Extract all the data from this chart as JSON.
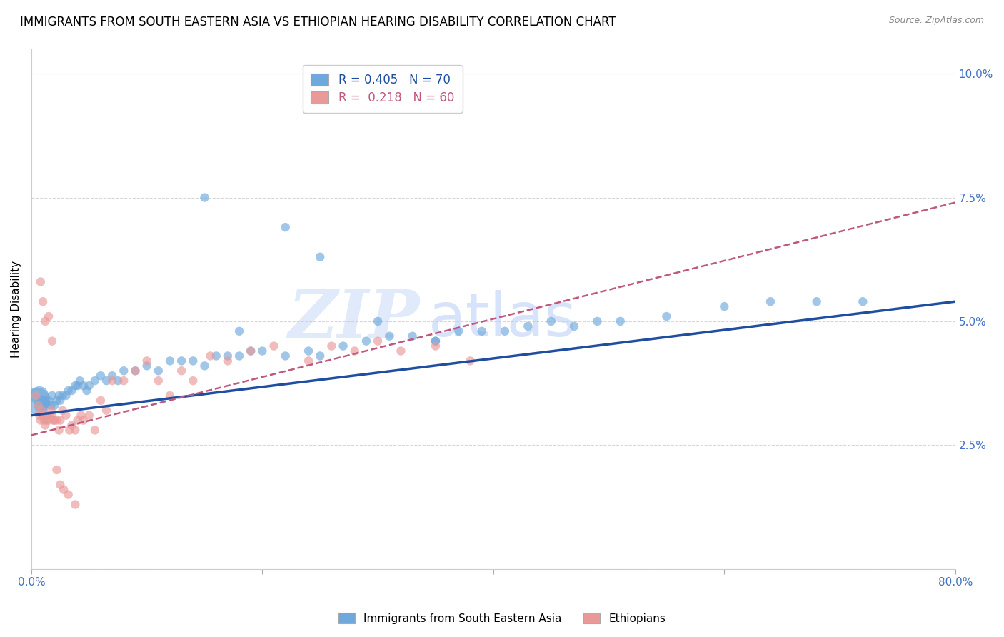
{
  "title": "IMMIGRANTS FROM SOUTH EASTERN ASIA VS ETHIOPIAN HEARING DISABILITY CORRELATION CHART",
  "source": "Source: ZipAtlas.com",
  "ylabel": "Hearing Disability",
  "yticks": [
    0.0,
    0.025,
    0.05,
    0.075,
    0.1
  ],
  "ytick_labels": [
    "",
    "2.5%",
    "5.0%",
    "7.5%",
    "10.0%"
  ],
  "xlim": [
    0.0,
    0.8
  ],
  "ylim": [
    0.0,
    0.105
  ],
  "legend_blue_R": "R = 0.405",
  "legend_blue_N": "N = 70",
  "legend_pink_R": "R =  0.218",
  "legend_pink_N": "N = 60",
  "legend_label_blue": "Immigrants from South Eastern Asia",
  "legend_label_pink": "Ethiopians",
  "blue_color": "#6fa8dc",
  "pink_color": "#ea9999",
  "blue_line_color": "#1f4ea1",
  "pink_line_color": "#c0587e",
  "watermark_color": "#c9daf8",
  "blue_scatter_x": [
    0.005,
    0.007,
    0.008,
    0.009,
    0.01,
    0.011,
    0.012,
    0.013,
    0.015,
    0.017,
    0.018,
    0.02,
    0.022,
    0.024,
    0.025,
    0.027,
    0.03,
    0.032,
    0.035,
    0.038,
    0.04,
    0.042,
    0.045,
    0.048,
    0.05,
    0.055,
    0.06,
    0.065,
    0.07,
    0.075,
    0.08,
    0.09,
    0.1,
    0.11,
    0.12,
    0.13,
    0.14,
    0.15,
    0.16,
    0.17,
    0.18,
    0.19,
    0.2,
    0.22,
    0.24,
    0.25,
    0.27,
    0.29,
    0.31,
    0.33,
    0.35,
    0.37,
    0.39,
    0.41,
    0.43,
    0.45,
    0.47,
    0.49,
    0.51,
    0.55,
    0.6,
    0.64,
    0.68,
    0.72,
    0.15,
    0.22,
    0.25,
    0.18,
    0.3,
    0.35
  ],
  "blue_scatter_y": [
    0.034,
    0.035,
    0.033,
    0.034,
    0.032,
    0.033,
    0.034,
    0.033,
    0.034,
    0.033,
    0.035,
    0.033,
    0.034,
    0.035,
    0.034,
    0.035,
    0.035,
    0.036,
    0.036,
    0.037,
    0.037,
    0.038,
    0.037,
    0.036,
    0.037,
    0.038,
    0.039,
    0.038,
    0.039,
    0.038,
    0.04,
    0.04,
    0.041,
    0.04,
    0.042,
    0.042,
    0.042,
    0.041,
    0.043,
    0.043,
    0.043,
    0.044,
    0.044,
    0.043,
    0.044,
    0.043,
    0.045,
    0.046,
    0.047,
    0.047,
    0.046,
    0.048,
    0.048,
    0.048,
    0.049,
    0.05,
    0.049,
    0.05,
    0.05,
    0.051,
    0.053,
    0.054,
    0.054,
    0.054,
    0.075,
    0.069,
    0.063,
    0.048,
    0.05,
    0.046
  ],
  "blue_scatter_size": [
    700,
    350,
    180,
    120,
    80,
    80,
    80,
    80,
    80,
    80,
    80,
    80,
    80,
    80,
    80,
    80,
    80,
    80,
    80,
    80,
    80,
    80,
    80,
    80,
    80,
    80,
    80,
    80,
    80,
    80,
    80,
    80,
    80,
    80,
    80,
    80,
    80,
    80,
    80,
    80,
    80,
    80,
    80,
    80,
    80,
    80,
    80,
    80,
    80,
    80,
    80,
    80,
    80,
    80,
    80,
    80,
    80,
    80,
    80,
    80,
    80,
    80,
    80,
    80,
    80,
    80,
    80,
    80,
    80,
    80
  ],
  "pink_scatter_x": [
    0.004,
    0.006,
    0.007,
    0.008,
    0.009,
    0.01,
    0.011,
    0.012,
    0.013,
    0.014,
    0.015,
    0.016,
    0.017,
    0.018,
    0.019,
    0.02,
    0.022,
    0.024,
    0.025,
    0.027,
    0.03,
    0.033,
    0.035,
    0.038,
    0.04,
    0.043,
    0.045,
    0.05,
    0.055,
    0.06,
    0.065,
    0.07,
    0.08,
    0.09,
    0.1,
    0.11,
    0.12,
    0.13,
    0.14,
    0.155,
    0.17,
    0.19,
    0.21,
    0.24,
    0.26,
    0.28,
    0.3,
    0.32,
    0.35,
    0.38,
    0.008,
    0.01,
    0.012,
    0.015,
    0.018,
    0.022,
    0.025,
    0.028,
    0.032,
    0.038
  ],
  "pink_scatter_y": [
    0.035,
    0.033,
    0.031,
    0.03,
    0.032,
    0.031,
    0.03,
    0.029,
    0.03,
    0.031,
    0.03,
    0.031,
    0.032,
    0.031,
    0.03,
    0.03,
    0.03,
    0.028,
    0.03,
    0.032,
    0.031,
    0.028,
    0.029,
    0.028,
    0.03,
    0.031,
    0.03,
    0.031,
    0.028,
    0.034,
    0.032,
    0.038,
    0.038,
    0.04,
    0.042,
    0.038,
    0.035,
    0.04,
    0.038,
    0.043,
    0.042,
    0.044,
    0.045,
    0.042,
    0.045,
    0.044,
    0.046,
    0.044,
    0.045,
    0.042,
    0.058,
    0.054,
    0.05,
    0.051,
    0.046,
    0.02,
    0.017,
    0.016,
    0.015,
    0.013
  ],
  "pink_scatter_size": [
    80,
    80,
    80,
    80,
    80,
    80,
    80,
    80,
    80,
    80,
    80,
    80,
    80,
    80,
    80,
    80,
    80,
    80,
    80,
    80,
    80,
    80,
    80,
    80,
    80,
    80,
    80,
    80,
    80,
    80,
    80,
    80,
    80,
    80,
    80,
    80,
    80,
    80,
    80,
    80,
    80,
    80,
    80,
    80,
    80,
    80,
    80,
    80,
    80,
    80,
    80,
    80,
    80,
    80,
    80,
    80,
    80,
    80,
    80,
    80
  ],
  "blue_line_x0": 0.0,
  "blue_line_x1": 0.8,
  "blue_line_y0": 0.031,
  "blue_line_y1": 0.054,
  "pink_line_x0": 0.0,
  "pink_line_x1": 0.8,
  "pink_line_y0": 0.027,
  "pink_line_y1": 0.074,
  "grid_color": "#cccccc",
  "background_color": "#ffffff",
  "tick_color": "#4472c4",
  "title_fontsize": 12,
  "axis_label_fontsize": 11,
  "tick_fontsize": 11,
  "legend_fontsize": 12
}
